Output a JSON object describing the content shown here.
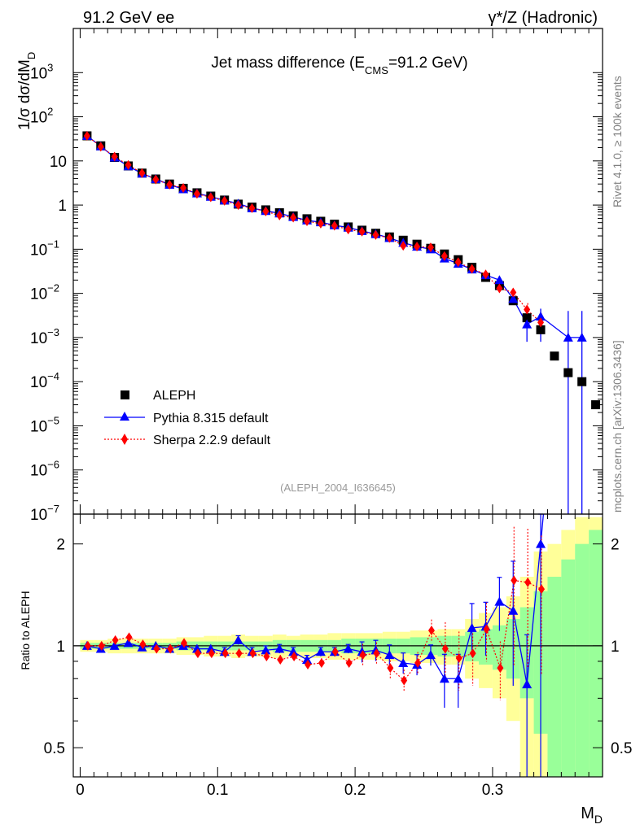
{
  "header": {
    "left": "91.2 GeV ee",
    "right": "γ*/Z (Hadronic)"
  },
  "side": {
    "rivet": "Rivet 4.1.0, ≥ 100k events",
    "mcplots": "mcplots.cern.ch [arXiv:1306.3436]"
  },
  "colors": {
    "data": "#000000",
    "pythia": "#0000ff",
    "sherpa": "#ff0000",
    "band_yellow": "#ffff99",
    "band_green": "#99ff99"
  },
  "chart_data": [
    {
      "type": "scatter",
      "title": "Jet mass difference (E_CMS=91.2 GeV)",
      "title_main": "Jet mass difference (E",
      "title_sub": "CMS",
      "title_rest": "=91.2 GeV)",
      "ylabel_main": "1/σ  dσ/dM",
      "ylabel_sub": "D",
      "yscale": "log",
      "ylim": [
        1e-07,
        10000
      ],
      "xlim": [
        -0.005,
        0.38
      ],
      "y_ticks": [
        {
          "v": 1000,
          "label": "10",
          "exp": "3"
        },
        {
          "v": 100,
          "label": "10",
          "exp": "2"
        },
        {
          "v": 10,
          "label": "10",
          "exp": ""
        },
        {
          "v": 1,
          "label": "1",
          "exp": ""
        },
        {
          "v": 0.1,
          "label": "10",
          "exp": "−1"
        },
        {
          "v": 0.01,
          "label": "10",
          "exp": "−2"
        },
        {
          "v": 0.001,
          "label": "10",
          "exp": "−3"
        },
        {
          "v": 0.0001,
          "label": "10",
          "exp": "−4"
        },
        {
          "v": 1e-05,
          "label": "10",
          "exp": "−5"
        },
        {
          "v": 1e-06,
          "label": "10",
          "exp": "−6"
        },
        {
          "v": 1e-07,
          "label": "10",
          "exp": "−7"
        }
      ],
      "legend": [
        "ALEPH",
        "Pythia 8.315 default",
        "Sherpa 2.2.9 default"
      ],
      "legend_position": "bottom-left",
      "watermark": "(ALEPH_2004_I636645)",
      "x": [
        0.005,
        0.015,
        0.025,
        0.035,
        0.045,
        0.055,
        0.065,
        0.075,
        0.085,
        0.095,
        0.105,
        0.115,
        0.125,
        0.135,
        0.145,
        0.155,
        0.165,
        0.175,
        0.185,
        0.195,
        0.205,
        0.215,
        0.225,
        0.235,
        0.245,
        0.255,
        0.265,
        0.275,
        0.285,
        0.295,
        0.305,
        0.315,
        0.325,
        0.335,
        0.345,
        0.355,
        0.365,
        0.375
      ],
      "series": [
        {
          "name": "ALEPH",
          "values": [
            37,
            22,
            12,
            7.7,
            5.3,
            3.9,
            3.0,
            2.4,
            1.9,
            1.6,
            1.3,
            1.05,
            0.9,
            0.78,
            0.67,
            0.57,
            0.49,
            0.43,
            0.37,
            0.32,
            0.27,
            0.23,
            0.19,
            0.16,
            0.13,
            0.105,
            0.078,
            0.058,
            0.039,
            0.023,
            0.015,
            0.0068,
            0.0028,
            0.0015,
            0.00038,
            0.00016,
            0.0001,
            3e-05
          ]
        },
        {
          "name": "Pythia 8.315 default",
          "values": [
            37,
            21.5,
            12,
            7.6,
            5.2,
            3.9,
            2.9,
            2.3,
            1.85,
            1.55,
            1.28,
            1.08,
            0.85,
            0.74,
            0.65,
            0.54,
            0.45,
            0.41,
            0.35,
            0.31,
            0.26,
            0.22,
            0.18,
            0.14,
            0.115,
            0.1,
            0.062,
            0.047,
            0.035,
            0.026,
            0.02,
            0.0075,
            0.002,
            0.003,
            null,
            0.001,
            0.001,
            null
          ]
        },
        {
          "name": "Sherpa 2.2.9 default",
          "values": [
            37,
            21,
            12.5,
            8.1,
            5.3,
            3.8,
            2.9,
            2.45,
            1.8,
            1.5,
            1.25,
            1.0,
            0.85,
            0.72,
            0.58,
            0.52,
            0.43,
            0.38,
            0.34,
            0.28,
            0.25,
            0.21,
            0.18,
            0.12,
            0.115,
            0.11,
            0.07,
            0.051,
            0.036,
            0.027,
            0.013,
            0.0105,
            0.0043,
            0.0022,
            null,
            null,
            null,
            null
          ]
        }
      ]
    },
    {
      "type": "scatter",
      "ylabel": "Ratio to ALEPH",
      "xlabel_main": "M",
      "xlabel_sub": "D",
      "yscale": "log",
      "ylim": [
        0.41,
        2.45
      ],
      "y_ticks": [
        {
          "v": 0.5,
          "label": "0.5"
        },
        {
          "v": 1,
          "label": "1"
        },
        {
          "v": 2,
          "label": "2"
        }
      ],
      "x_ticks": [
        {
          "v": 0,
          "label": "0"
        },
        {
          "v": 0.1,
          "label": "0.1"
        },
        {
          "v": 0.2,
          "label": "0.2"
        },
        {
          "v": 0.3,
          "label": "0.3"
        }
      ],
      "x": [
        0.005,
        0.015,
        0.025,
        0.035,
        0.045,
        0.055,
        0.065,
        0.075,
        0.085,
        0.095,
        0.105,
        0.115,
        0.125,
        0.135,
        0.145,
        0.155,
        0.165,
        0.175,
        0.185,
        0.195,
        0.205,
        0.215,
        0.225,
        0.235,
        0.245,
        0.255,
        0.265,
        0.275,
        0.285,
        0.295,
        0.305,
        0.315,
        0.325,
        0.335
      ],
      "series": [
        {
          "name": "Pythia 8.315 default",
          "values": [
            1.0,
            0.98,
            1.0,
            1.02,
            0.99,
            1.0,
            0.98,
            1.0,
            0.98,
            0.98,
            0.96,
            1.04,
            0.96,
            0.97,
            0.98,
            0.96,
            0.91,
            0.96,
            0.96,
            0.98,
            0.96,
            0.97,
            0.94,
            0.89,
            0.88,
            0.94,
            0.8,
            0.8,
            1.13,
            1.14,
            1.35,
            1.27,
            0.77,
            2.0
          ]
        },
        {
          "name": "Sherpa 2.2.9 default",
          "values": [
            1.0,
            1.0,
            1.04,
            1.06,
            1.01,
            0.98,
            0.98,
            1.02,
            0.95,
            0.95,
            0.95,
            0.95,
            0.95,
            0.93,
            0.91,
            0.93,
            0.88,
            0.89,
            0.96,
            0.89,
            0.94,
            0.95,
            0.86,
            0.79,
            0.89,
            1.11,
            0.98,
            0.92,
            0.95,
            1.12,
            0.86,
            1.56,
            1.54,
            1.47
          ]
        }
      ],
      "band_yellow": [
        0.04,
        0.04,
        0.05,
        0.05,
        0.05,
        0.05,
        0.05,
        0.06,
        0.06,
        0.07,
        0.07,
        0.08,
        0.07,
        0.07,
        0.08,
        0.07,
        0.08,
        0.08,
        0.09,
        0.09,
        0.09,
        0.09,
        0.1,
        0.1,
        0.11,
        0.11,
        0.12,
        0.12,
        0.2,
        0.25,
        0.3,
        0.4,
        0.6,
        0.9,
        1.0,
        1.2,
        1.4,
        1.4
      ],
      "band_green": [
        0.02,
        0.02,
        0.02,
        0.02,
        0.02,
        0.02,
        0.02,
        0.03,
        0.03,
        0.03,
        0.03,
        0.03,
        0.03,
        0.03,
        0.04,
        0.04,
        0.04,
        0.04,
        0.04,
        0.05,
        0.05,
        0.05,
        0.05,
        0.05,
        0.06,
        0.06,
        0.07,
        0.07,
        0.1,
        0.12,
        0.15,
        0.2,
        0.3,
        0.45,
        0.6,
        0.8,
        1.0,
        1.2
      ]
    }
  ]
}
